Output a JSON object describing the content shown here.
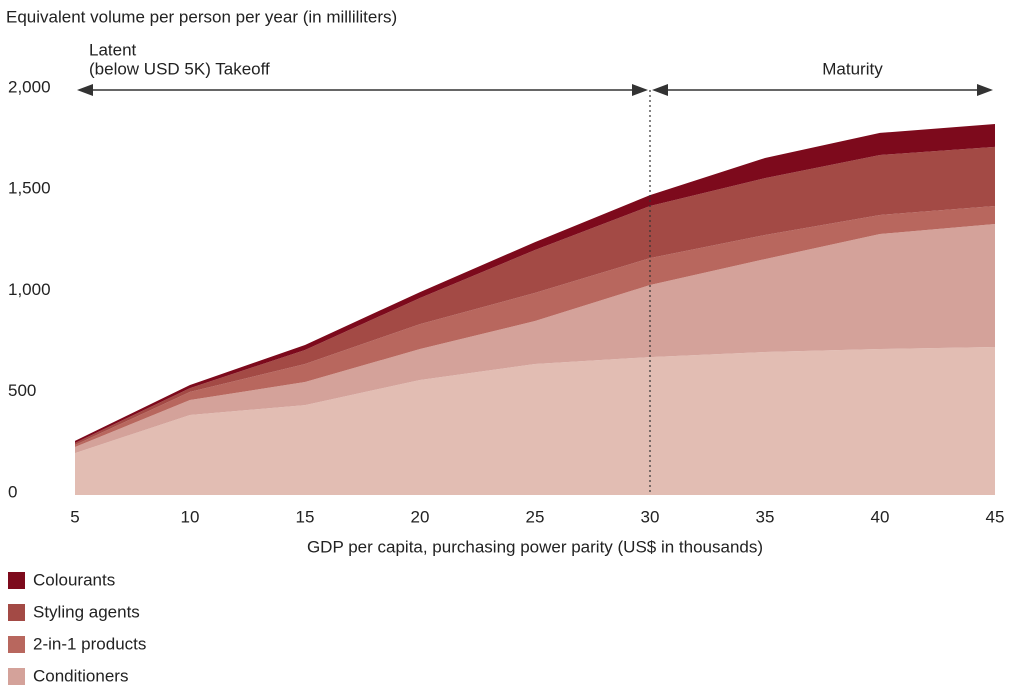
{
  "chart_data": {
    "type": "stacked_area",
    "y_axis_label": "Equivalent volume per person per year (in milliliters)",
    "x_axis_label": "GDP per capita, purchasing power parity (US$ in thousands)",
    "x": [
      5,
      10,
      15,
      20,
      25,
      30,
      35,
      40,
      45
    ],
    "series": [
      {
        "color": "#e2bdb3",
        "values": [
          207,
          395,
          444,
          568,
          647,
          681,
          706,
          721,
          731
        ]
      },
      {
        "name": "Conditioners",
        "color": "#d4a29a",
        "values": [
          30,
          74,
          114,
          153,
          212,
          356,
          459,
          568,
          607
        ]
      },
      {
        "name": "2-in-1 products",
        "color": "#b8675e",
        "values": [
          10,
          40,
          89,
          123,
          139,
          133,
          119,
          94,
          89
        ]
      },
      {
        "name": "Styling agents",
        "color": "#a34a45",
        "values": [
          10,
          19,
          69,
          129,
          212,
          257,
          281,
          296,
          292
        ]
      },
      {
        "name": "Colourants",
        "color": "#7d0a1c",
        "values": [
          10,
          15,
          25,
          29,
          39,
          54,
          99,
          109,
          113
        ]
      }
    ],
    "xlim": [
      5,
      45
    ],
    "xticks": [
      5,
      10,
      15,
      20,
      25,
      30,
      35,
      40,
      45
    ],
    "ylim": [
      0,
      2000
    ],
    "yticks": [
      0,
      500,
      {
        "value": 1000,
        "label": "1,000"
      },
      {
        "value": 1500,
        "label": "1,500"
      },
      {
        "value": 2000,
        "label": "2,000"
      }
    ],
    "latent_label": [
      "Latent",
      "(below USD 5K)"
    ],
    "phases": [
      {
        "label": "Takeoff",
        "start": 5,
        "end": 30
      },
      {
        "label": "Maturity",
        "start": 30,
        "end": 45
      }
    ]
  }
}
